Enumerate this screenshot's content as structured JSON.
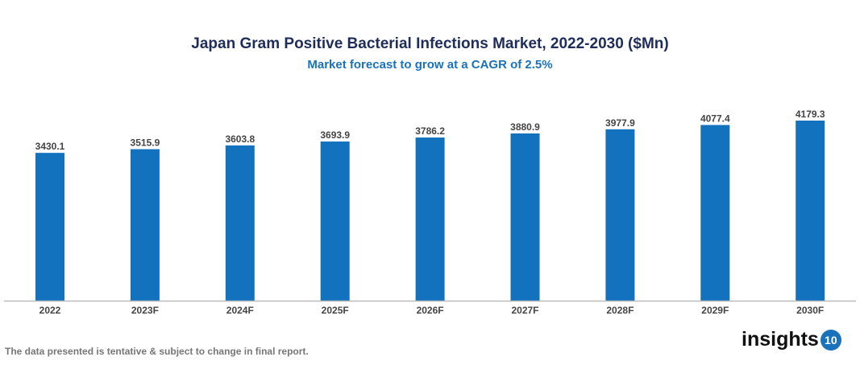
{
  "chart_data": {
    "type": "bar",
    "title": "Japan Gram Positive Bacterial Infections Market, 2022-2030 ($Mn)",
    "subtitle": "Market forecast to grow at a CAGR of 2.5%",
    "categories": [
      "2022",
      "2023F",
      "2024F",
      "2025F",
      "2026F",
      "2027F",
      "2028F",
      "2029F",
      "2030F"
    ],
    "values": [
      3430.1,
      3515.9,
      3603.8,
      3693.9,
      3786.2,
      3880.9,
      3977.9,
      4077.4,
      4179.3
    ],
    "ylim": [
      0,
      4179.3
    ],
    "grid": false,
    "bar_color": "#1272bd"
  },
  "footer": {
    "note": "The data presented is tentative & subject to change in final report.",
    "logo_text": "insights",
    "logo_badge": "10"
  }
}
